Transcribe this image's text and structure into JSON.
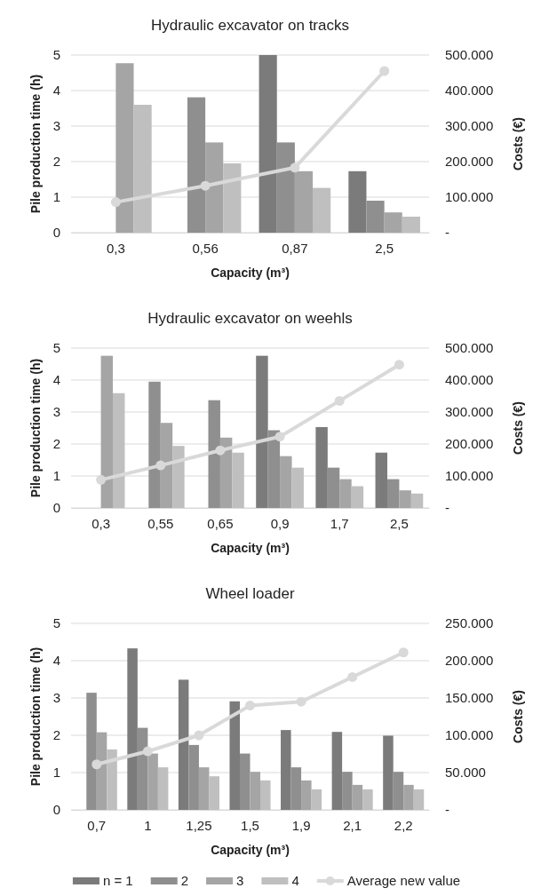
{
  "chart_data": [
    {
      "type": "bar",
      "title": "Hydraulic excavator on tracks",
      "xlabel": "Capacity (m³)",
      "ylabel": "Pile production time (h)",
      "y2label": "Costs (€)",
      "categories": [
        "0,3",
        "0,56",
        "0,87",
        "2,5"
      ],
      "ylim": [
        0,
        5
      ],
      "yticks": [
        0,
        1,
        2,
        3,
        4,
        5
      ],
      "y2lim": [
        0,
        500000
      ],
      "y2ticks": [
        {
          "value": 0,
          "label": "-"
        },
        {
          "value": 100000,
          "label": "100.000"
        },
        {
          "value": 200000,
          "label": "200.000"
        },
        {
          "value": 300000,
          "label": "300.000"
        },
        {
          "value": 400000,
          "label": "400.000"
        },
        {
          "value": 500000,
          "label": "500.000"
        }
      ],
      "grid": "y",
      "legend": false,
      "marker": "circle",
      "series": [
        {
          "color": "#7b7b7b",
          "values": [
            null,
            null,
            5.0,
            1.73
          ]
        },
        {
          "color": "#8f8f8f",
          "values": [
            null,
            3.81,
            2.54,
            0.9
          ]
        },
        {
          "color": "#a5a5a5",
          "values": [
            4.77,
            2.54,
            1.73,
            0.57
          ]
        },
        {
          "color": "#bfbfbf",
          "values": [
            3.6,
            1.95,
            1.26,
            0.45
          ]
        },
        {
          "type": "line",
          "axis": "y2",
          "color": "#d9d9d9",
          "values": [
            86000,
            132000,
            183000,
            455000
          ]
        }
      ]
    },
    {
      "type": "bar",
      "title": "Hydraulic excavator on weehls",
      "xlabel": "Capacity (m³)",
      "ylabel": "Pile production time (h)",
      "y2label": "Costs (€)",
      "categories": [
        "0,3",
        "0,55",
        "0,65",
        "0,9",
        "1,7",
        "2,5"
      ],
      "ylim": [
        0,
        5
      ],
      "yticks": [
        0,
        1,
        2,
        3,
        4,
        5
      ],
      "y2lim": [
        0,
        500000
      ],
      "y2ticks": [
        {
          "value": 0,
          "label": "-"
        },
        {
          "value": 100000,
          "label": "100.000"
        },
        {
          "value": 200000,
          "label": "200.000"
        },
        {
          "value": 300000,
          "label": "300.000"
        },
        {
          "value": 400000,
          "label": "400.000"
        },
        {
          "value": 500000,
          "label": "500.000"
        }
      ],
      "grid": "y",
      "legend": false,
      "marker": "circle",
      "series": [
        {
          "color": "#7b7b7b",
          "values": [
            null,
            null,
            null,
            4.76,
            2.53,
            1.73
          ]
        },
        {
          "color": "#8f8f8f",
          "values": [
            null,
            3.95,
            3.37,
            2.43,
            1.26,
            0.9
          ]
        },
        {
          "color": "#a5a5a5",
          "values": [
            4.76,
            2.66,
            2.2,
            1.62,
            0.9,
            0.55
          ]
        },
        {
          "color": "#bfbfbf",
          "values": [
            3.59,
            1.94,
            1.73,
            1.26,
            0.68,
            0.45
          ]
        },
        {
          "type": "line",
          "axis": "y2",
          "color": "#d9d9d9",
          "values": [
            88000,
            133000,
            180000,
            223000,
            335000,
            448000
          ]
        }
      ]
    },
    {
      "type": "bar",
      "title": "Wheel loader",
      "xlabel": "Capacity (m³)",
      "ylabel": "Pile production time (h)",
      "y2label": "Costs (€)",
      "categories": [
        "0,7",
        "1",
        "1,25",
        "1,5",
        "1,9",
        "2,1",
        "2,2"
      ],
      "ylim": [
        0,
        5
      ],
      "yticks": [
        0,
        1,
        2,
        3,
        4,
        5
      ],
      "y2lim": [
        0,
        250000
      ],
      "y2ticks": [
        {
          "value": 0,
          "label": "-"
        },
        {
          "value": 50000,
          "label": "50.000"
        },
        {
          "value": 100000,
          "label": "100.000"
        },
        {
          "value": 150000,
          "label": "150.000"
        },
        {
          "value": 200000,
          "label": "200.000"
        },
        {
          "value": 250000,
          "label": "250.000"
        }
      ],
      "grid": "y",
      "legend": "bottom",
      "marker": "circle",
      "series": [
        {
          "name": "n = 1",
          "color": "#7b7b7b",
          "values": [
            null,
            4.33,
            3.49,
            2.91,
            2.14,
            2.09,
            1.99
          ]
        },
        {
          "name": "2",
          "color": "#8f8f8f",
          "values": [
            3.14,
            2.2,
            1.74,
            1.51,
            1.14,
            1.02,
            1.02
          ]
        },
        {
          "name": "3",
          "color": "#a5a5a5",
          "values": [
            2.08,
            1.51,
            1.14,
            1.02,
            0.79,
            0.67,
            0.67
          ]
        },
        {
          "name": "4",
          "color": "#bfbfbf",
          "values": [
            1.62,
            1.14,
            0.9,
            0.79,
            0.55,
            0.55,
            0.55
          ]
        },
        {
          "name": "Average new value",
          "type": "line",
          "axis": "y2",
          "color": "#d9d9d9",
          "values": [
            61000,
            78500,
            100000,
            140000,
            145000,
            178000,
            211000
          ]
        }
      ]
    }
  ]
}
